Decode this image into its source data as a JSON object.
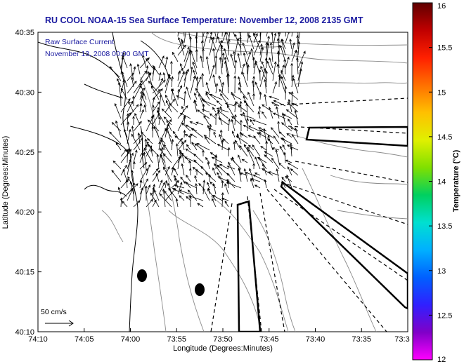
{
  "map": {
    "title": "RU COOL  NOAA-15  Sea Surface Temperature:  November 12, 2008 2135 GMT",
    "legend_line1": "Raw Surface Current",
    "legend_line2": "November 13, 2008 00:00 GMT",
    "scale_label": "50 cm/s",
    "xlabel": "Longitude (Degrees:Minutes)",
    "ylabel": "Latitude (Degrees:Minutes)",
    "x_ticks": [
      "74:10",
      "74:05",
      "74:00",
      "73:55",
      "73:50",
      "73:45",
      "73:40",
      "73:35",
      "73:3"
    ],
    "y_ticks": [
      "40:35",
      "40:30",
      "40:25",
      "40:20",
      "40:15",
      "40:10"
    ]
  },
  "colorbar": {
    "label": "Temperature (°C)",
    "ticks": [
      "16",
      "15.5",
      "15",
      "14.5",
      "14",
      "13.5",
      "13",
      "12.5",
      "12"
    ],
    "range": [
      12,
      16
    ],
    "colors": [
      "#ff00ff",
      "#8000c8",
      "#3020ff",
      "#0060ff",
      "#00b0ff",
      "#00e0d0",
      "#00d060",
      "#80e000",
      "#e0f000",
      "#ffc000",
      "#ff7000",
      "#ff2000",
      "#c00000",
      "#600000"
    ]
  }
}
